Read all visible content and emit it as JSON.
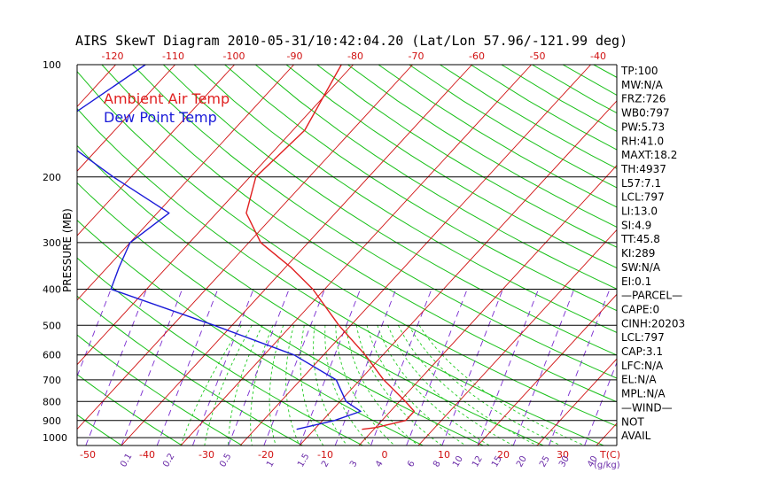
{
  "chart_data": {
    "type": "skewt",
    "title": "AIRS SkewT Diagram 2010-05-31/10:42:04.20 (Lat/Lon 57.96/-121.99 deg)",
    "ylabel": "PRESSURE (MB)",
    "xlabel_top_unit": "",
    "temp_unit_label": "T(C)",
    "mixing_unit_label": "(g/kg)",
    "pressure_ticks": [
      "100",
      "200",
      "300",
      "400",
      "500",
      "600",
      "700",
      "800",
      "900",
      "1000"
    ],
    "pressure_lines": [
      200,
      300,
      400,
      500,
      600,
      700,
      800,
      900,
      1000
    ],
    "top_temp_ticks": [
      -120,
      -110,
      -100,
      -90,
      -80,
      -70,
      -60,
      -50,
      -40
    ],
    "bottom_temp_ticks": [
      -50,
      -40,
      -30,
      -20,
      -10,
      0,
      10,
      20,
      30
    ],
    "mixing_ratio_labels": [
      "0.1",
      "0.2",
      "0.5",
      "1",
      "1.5",
      "2",
      "3",
      "4",
      "6",
      "8",
      "10",
      "12",
      "15",
      "20",
      "25",
      "30",
      "40"
    ],
    "legend": [
      {
        "label": "Ambient Air Temp",
        "color": "#e02020"
      },
      {
        "label": "Dew Point Temp",
        "color": "#1a1ad8"
      }
    ],
    "series": [
      {
        "name": "Ambient Air Temp",
        "color": "#e02020",
        "points": [
          {
            "p": 100,
            "t": -62
          },
          {
            "p": 150,
            "t": -58
          },
          {
            "p": 200,
            "t": -59
          },
          {
            "p": 250,
            "t": -55
          },
          {
            "p": 300,
            "t": -48
          },
          {
            "p": 350,
            "t": -39
          },
          {
            "p": 400,
            "t": -32
          },
          {
            "p": 500,
            "t": -22
          },
          {
            "p": 600,
            "t": -13
          },
          {
            "p": 700,
            "t": -6
          },
          {
            "p": 800,
            "t": 1
          },
          {
            "p": 850,
            "t": 4
          },
          {
            "p": 900,
            "t": 4
          },
          {
            "p": 940,
            "t": 0
          },
          {
            "p": 950,
            "t": -2
          }
        ]
      },
      {
        "name": "Dew Point Temp",
        "color": "#1a1ad8",
        "points": [
          {
            "p": 100,
            "t": -95
          },
          {
            "p": 150,
            "t": -101
          },
          {
            "p": 200,
            "t": -83
          },
          {
            "p": 250,
            "t": -68
          },
          {
            "p": 300,
            "t": -70
          },
          {
            "p": 350,
            "t": -68
          },
          {
            "p": 400,
            "t": -66
          },
          {
            "p": 500,
            "t": -43
          },
          {
            "p": 600,
            "t": -25
          },
          {
            "p": 700,
            "t": -14
          },
          {
            "p": 800,
            "t": -9
          },
          {
            "p": 850,
            "t": -5
          },
          {
            "p": 900,
            "t": -8
          },
          {
            "p": 950,
            "t": -13
          }
        ]
      }
    ]
  },
  "stats": [
    "TP:100",
    "MW:N/A",
    "FRZ:726",
    "WB0:797",
    "PW:5.73",
    "RH:41.0",
    "MAXT:18.2",
    "TH:4937",
    "L57:7.1",
    "LCL:797",
    "LI:13.0",
    "SI:4.9",
    "TT:45.8",
    "KI:289",
    "SW:N/A",
    "EI:0.1",
    "—PARCEL—",
    "CAPE:0",
    "CINH:20203",
    "LCL:797",
    "CAP:3.1",
    "LFC:N/A",
    "EL:N/A",
    "MPL:N/A",
    "—WIND—",
    "NOT",
    "AVAIL"
  ],
  "colors": {
    "temp_line": "#e02020",
    "dew_line": "#1a1ad8",
    "isotherm": "#d01010",
    "dry_adiabat": "#18c018",
    "moist_adiabat": "#22cc22",
    "mixing_ratio": "#7a2bd0",
    "isobar": "#000000"
  }
}
